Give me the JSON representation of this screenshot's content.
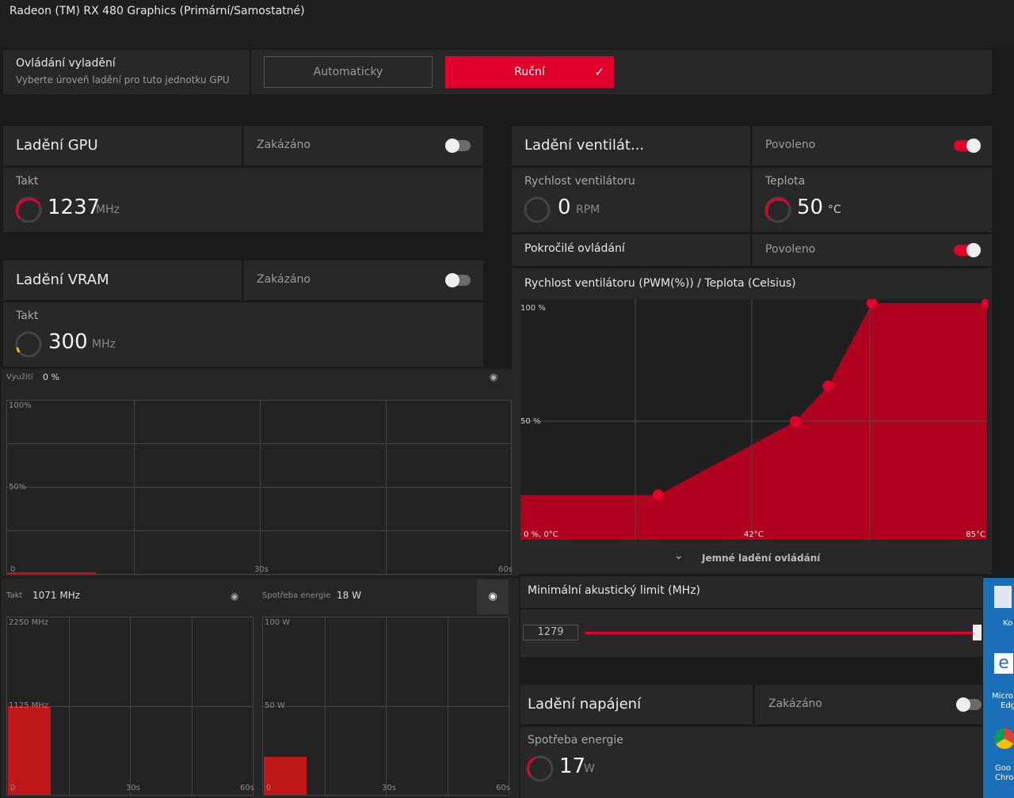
{
  "window_title": "Radeon (TM) RX 480 Graphics (Primární/Samostatné)",
  "tuning_control": {
    "title": "Ovládání vyladění",
    "subtitle": "Vyberte úroveň ladění pro tuto jednotku GPU",
    "options": [
      "Automaticky",
      "Ruční"
    ]
  },
  "gpu_tuning": {
    "title": "Ladění GPU",
    "status": "Zakázáno",
    "metric_label": "Takt",
    "value": "1237",
    "unit": "MHz"
  },
  "vram_tuning": {
    "title": "Ladění VRAM",
    "status": "Zakázáno",
    "metric_label": "Takt",
    "value": "300",
    "unit": "MHz"
  },
  "fan_tuning": {
    "title": "Ladění ventilát...",
    "status": "Povoleno",
    "speed_label": "Rychlost ventilátoru",
    "speed_value": "0",
    "speed_unit": "RPM",
    "temp_label": "Teplota",
    "temp_value": "50",
    "temp_unit": "°C",
    "advanced_label": "Pokročilé ovládání",
    "advanced_status": "Povoleno",
    "curve_title": "Rychlost ventilátoru (PWM(%)) / Teplota (Celsius)",
    "curve_labels": [
      "100 %",
      "50 %",
      "0 %, 0°C",
      "42°C",
      "85°C"
    ],
    "curve": {
      "temperatures": [
        25,
        50,
        56,
        64,
        85
      ],
      "speeds": [
        19,
        50,
        65,
        100,
        100
      ],
      "xlim": [
        0,
        85
      ],
      "ylim": [
        0,
        100
      ]
    },
    "fine_tuning": "Jemné ladění ovládání",
    "acoustic_label": "Minimální akustický limit (MHz)",
    "acoustic_value": "1279"
  },
  "power_tuning": {
    "title": "Ladění napájení",
    "status": "Zakázáno",
    "metric_label": "Spotřeba energie",
    "value": "17",
    "unit": "W"
  },
  "monitor_usage": {
    "label": "Využití",
    "value": "0 %",
    "axis": [
      "100%",
      "50%",
      "0",
      "30s",
      "60s"
    ]
  },
  "monitor_clock": {
    "label": "Takt",
    "value": "1071 MHz",
    "axis": [
      "2250 MHz",
      "1125 MHz",
      "0",
      "30s",
      "60s"
    ]
  },
  "monitor_power": {
    "label": "Spotřeba energie",
    "value": "18 W",
    "axis": [
      "100 W",
      "50 W",
      "0",
      "30s",
      "60s"
    ]
  },
  "desktop_icons": [
    "Ko",
    "Micro",
    "Edg",
    "Goo",
    "Chro"
  ]
}
